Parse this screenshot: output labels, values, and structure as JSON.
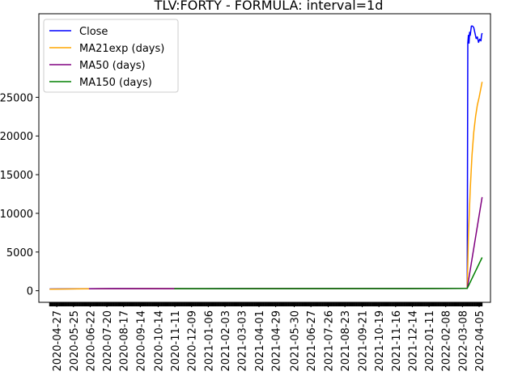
{
  "chart_data": {
    "type": "line",
    "title": "TLV:FORTY - FORMULA: interval=1d",
    "xlabel": "",
    "ylabel": "",
    "ylim": [
      -1500,
      35800
    ],
    "yticks": [
      0,
      5000,
      10000,
      15000,
      20000,
      25000
    ],
    "ytick_labels": [
      "0",
      "5000",
      "10000",
      "15000",
      "20000",
      "25000"
    ],
    "xlim": [
      "2020-03-28",
      "2022-04-24"
    ],
    "data_start": "2020-04-15",
    "data_end": "2022-04-10",
    "xtick_labels": [
      "2020-04-27",
      "2020-05-25",
      "2020-06-22",
      "2020-07-20",
      "2020-08-17",
      "2020-09-14",
      "2020-10-14",
      "2020-11-11",
      "2020-12-09",
      "2021-01-06",
      "2021-02-03",
      "2021-03-03",
      "2021-04-01",
      "2021-04-29",
      "2021-05-30",
      "2021-06-27",
      "2021-07-26",
      "2021-08-23",
      "2021-09-21",
      "2021-10-19",
      "2021-11-16",
      "2021-12-14",
      "2022-01-11",
      "2022-02-08",
      "2022-03-08",
      "2022-04-05"
    ],
    "grid": false,
    "legend": "top-left",
    "series": [
      {
        "name": "Close",
        "color": "#0000ff",
        "points": [
          [
            "2020-04-15",
            230
          ],
          [
            "2020-06-01",
            250
          ],
          [
            "2020-08-01",
            270
          ],
          [
            "2020-10-01",
            275
          ],
          [
            "2020-12-01",
            260
          ],
          [
            "2021-02-01",
            270
          ],
          [
            "2021-04-01",
            275
          ],
          [
            "2021-06-01",
            278
          ],
          [
            "2021-08-01",
            285
          ],
          [
            "2021-10-01",
            290
          ],
          [
            "2021-12-01",
            295
          ],
          [
            "2022-01-15",
            295
          ],
          [
            "2022-03-16",
            300
          ],
          [
            "2022-03-17",
            32000
          ],
          [
            "2022-03-18",
            33000
          ],
          [
            "2022-03-19",
            32000
          ],
          [
            "2022-03-20",
            33400
          ],
          [
            "2022-03-21",
            33000
          ],
          [
            "2022-03-23",
            34200
          ],
          [
            "2022-03-25",
            34200
          ],
          [
            "2022-03-27",
            34000
          ],
          [
            "2022-03-29",
            33300
          ],
          [
            "2022-03-31",
            32600
          ],
          [
            "2022-04-02",
            32800
          ],
          [
            "2022-04-04",
            32100
          ],
          [
            "2022-04-06",
            32500
          ],
          [
            "2022-04-08",
            32300
          ],
          [
            "2022-04-09",
            33000
          ],
          [
            "2022-04-10",
            33300
          ]
        ]
      },
      {
        "name": "MA21exp (days)",
        "color": "#ffa500",
        "points": [
          [
            "2020-04-15",
            200
          ],
          [
            "2020-06-01",
            240
          ],
          [
            "2020-08-01",
            265
          ],
          [
            "2020-10-01",
            270
          ],
          [
            "2020-12-01",
            260
          ],
          [
            "2021-02-01",
            268
          ],
          [
            "2021-04-01",
            272
          ],
          [
            "2021-06-01",
            276
          ],
          [
            "2021-08-01",
            282
          ],
          [
            "2021-10-01",
            288
          ],
          [
            "2021-12-01",
            292
          ],
          [
            "2022-01-15",
            294
          ],
          [
            "2022-03-16",
            300
          ],
          [
            "2022-03-18",
            7000
          ],
          [
            "2022-03-21",
            13000
          ],
          [
            "2022-03-24",
            17500
          ],
          [
            "2022-03-27",
            20500
          ],
          [
            "2022-03-30",
            22500
          ],
          [
            "2022-04-02",
            24000
          ],
          [
            "2022-04-05",
            25000
          ],
          [
            "2022-04-08",
            26200
          ],
          [
            "2022-04-10",
            27000
          ]
        ]
      },
      {
        "name": "MA50 (days)",
        "color": "#800080",
        "points": [
          [
            "2020-06-20",
            255
          ],
          [
            "2020-08-01",
            262
          ],
          [
            "2020-10-01",
            268
          ],
          [
            "2020-12-01",
            262
          ],
          [
            "2021-02-01",
            266
          ],
          [
            "2021-04-01",
            270
          ],
          [
            "2021-06-01",
            274
          ],
          [
            "2021-08-01",
            280
          ],
          [
            "2021-10-01",
            286
          ],
          [
            "2021-12-01",
            290
          ],
          [
            "2022-01-15",
            292
          ],
          [
            "2022-03-16",
            300
          ],
          [
            "2022-04-10",
            12100
          ]
        ]
      },
      {
        "name": "MA150 (days)",
        "color": "#008000",
        "points": [
          [
            "2020-11-10",
            268
          ],
          [
            "2021-01-01",
            262
          ],
          [
            "2021-03-01",
            265
          ],
          [
            "2021-05-01",
            268
          ],
          [
            "2021-07-01",
            272
          ],
          [
            "2021-09-01",
            276
          ],
          [
            "2021-11-01",
            280
          ],
          [
            "2022-01-01",
            284
          ],
          [
            "2022-03-16",
            300
          ],
          [
            "2022-04-10",
            4300
          ]
        ]
      }
    ]
  }
}
